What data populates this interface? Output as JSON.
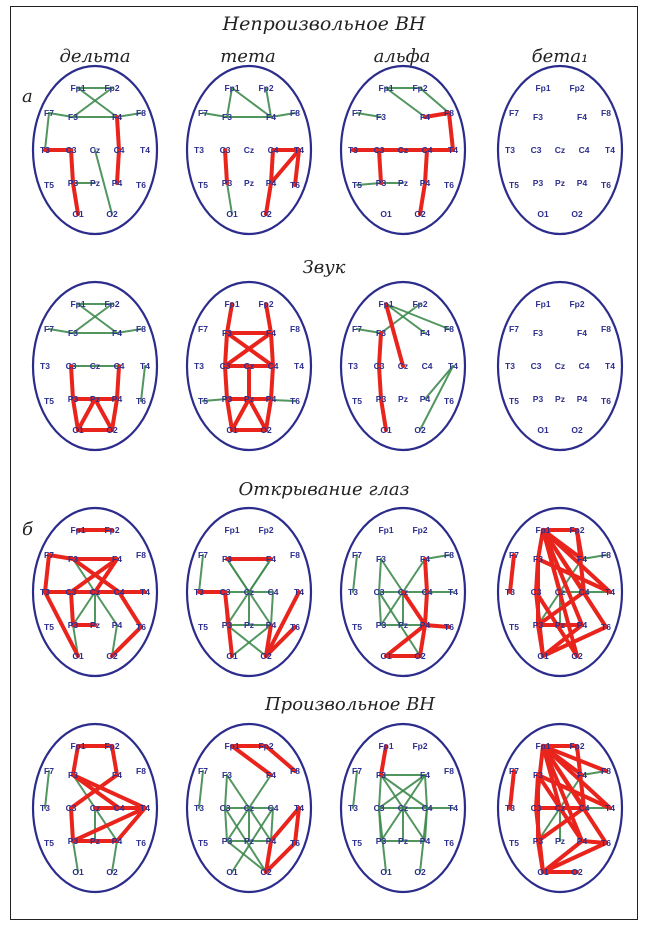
{
  "title": "Непроизвольное ВН",
  "columns": [
    "дельта",
    "тета",
    "альфа",
    "бета₁"
  ],
  "panel_labels": [
    "а",
    "б"
  ],
  "conditions": [
    "Непроизвольное ВН",
    "Звук",
    "Открывание глаз",
    "Произвольное ВН"
  ],
  "electrodes": [
    {
      "id": "Fp1",
      "label": "Fp1"
    },
    {
      "id": "Fp2",
      "label": "Fp2"
    },
    {
      "id": "F7",
      "label": "F7"
    },
    {
      "id": "F3",
      "label": "F3"
    },
    {
      "id": "F4",
      "label": "F4"
    },
    {
      "id": "F8",
      "label": "F8"
    },
    {
      "id": "T3",
      "label": "T3"
    },
    {
      "id": "C3",
      "label": "C3"
    },
    {
      "id": "Cz",
      "label": "Cz"
    },
    {
      "id": "C4",
      "label": "C4"
    },
    {
      "id": "T4",
      "label": "T4"
    },
    {
      "id": "T5",
      "label": "T5"
    },
    {
      "id": "P3",
      "label": "P3"
    },
    {
      "id": "Pz",
      "label": "Pz"
    },
    {
      "id": "P4",
      "label": "P4"
    },
    {
      "id": "T6",
      "label": "T6"
    },
    {
      "id": "O1",
      "label": "O1"
    },
    {
      "id": "O2",
      "label": "O2"
    }
  ],
  "colors": {
    "positive": "#e8241c",
    "negative": "#3f8a4e",
    "head": "#2c2c8c"
  },
  "maps": [
    [
      {
        "red": [
          [
            "C3",
            "P3"
          ],
          [
            "C4",
            "P4"
          ],
          [
            "C3",
            "T3"
          ],
          [
            "P3",
            "O1"
          ],
          [
            "F4",
            "C4"
          ]
        ],
        "green": [
          [
            "Fp1",
            "Fp2"
          ],
          [
            "Fp1",
            "F4"
          ],
          [
            "Fp2",
            "F3"
          ],
          [
            "F3",
            "F4"
          ],
          [
            "F7",
            "F3"
          ],
          [
            "F4",
            "F8"
          ],
          [
            "F7",
            "T3"
          ],
          [
            "P3",
            "Pz"
          ],
          [
            "Cz",
            "O2"
          ]
        ]
      },
      {
        "red": [
          [
            "C4",
            "P4"
          ],
          [
            "C4",
            "T4"
          ],
          [
            "P4",
            "T4"
          ],
          [
            "P4",
            "O2"
          ],
          [
            "C3",
            "P3"
          ],
          [
            "T4",
            "T6"
          ]
        ],
        "green": [
          [
            "Fp1",
            "F3"
          ],
          [
            "Fp2",
            "F4"
          ],
          [
            "F3",
            "F4"
          ],
          [
            "F7",
            "F3"
          ],
          [
            "F4",
            "F8"
          ],
          [
            "Fp1",
            "F4"
          ],
          [
            "P3",
            "O1"
          ]
        ]
      },
      {
        "red": [
          [
            "T3",
            "C3"
          ],
          [
            "C3",
            "Cz"
          ],
          [
            "Cz",
            "C4"
          ],
          [
            "C4",
            "T4"
          ],
          [
            "F4",
            "F8"
          ],
          [
            "F8",
            "T4"
          ],
          [
            "C4",
            "P4"
          ],
          [
            "P4",
            "O2"
          ],
          [
            "C3",
            "P3"
          ]
        ],
        "green": [
          [
            "Fp1",
            "Fp2"
          ],
          [
            "Fp1",
            "F4"
          ],
          [
            "Fp2",
            "F8"
          ],
          [
            "F7",
            "F3"
          ],
          [
            "P3",
            "Pz"
          ],
          [
            "T5",
            "P3"
          ]
        ]
      },
      {
        "red": [],
        "green": []
      }
    ],
    [
      {
        "red": [
          [
            "P3",
            "Pz"
          ],
          [
            "Pz",
            "P4"
          ],
          [
            "P3",
            "O1"
          ],
          [
            "O1",
            "O2"
          ],
          [
            "Pz",
            "O1"
          ],
          [
            "Pz",
            "O2"
          ],
          [
            "P4",
            "O2"
          ],
          [
            "C3",
            "P3"
          ],
          [
            "C4",
            "P4"
          ],
          [
            "P3",
            "P4"
          ]
        ],
        "green": [
          [
            "Fp1",
            "Fp2"
          ],
          [
            "Fp1",
            "F4"
          ],
          [
            "Fp2",
            "F3"
          ],
          [
            "F3",
            "F4"
          ],
          [
            "F7",
            "F3"
          ],
          [
            "F4",
            "F8"
          ],
          [
            "C3",
            "Cz"
          ],
          [
            "Cz",
            "C4"
          ],
          [
            "T4",
            "T6"
          ]
        ]
      },
      {
        "red": [
          [
            "Fp1",
            "F3"
          ],
          [
            "Fp2",
            "F4"
          ],
          [
            "F3",
            "F4"
          ],
          [
            "F3",
            "C4"
          ],
          [
            "F4",
            "C3"
          ],
          [
            "C3",
            "C4"
          ],
          [
            "C3",
            "P3"
          ],
          [
            "C4",
            "P4"
          ],
          [
            "P3",
            "P4"
          ],
          [
            "P3",
            "O1"
          ],
          [
            "P4",
            "O2"
          ],
          [
            "O1",
            "O2"
          ],
          [
            "Pz",
            "O1"
          ],
          [
            "Pz",
            "O2"
          ],
          [
            "F3",
            "C3"
          ],
          [
            "F4",
            "C4"
          ],
          [
            "Cz",
            "Pz"
          ]
        ],
        "green": [
          [
            "T5",
            "P3"
          ],
          [
            "Pz",
            "T6"
          ]
        ]
      },
      {
        "red": [
          [
            "Fp1",
            "Cz"
          ],
          [
            "F3",
            "C3"
          ],
          [
            "C3",
            "P3"
          ],
          [
            "P3",
            "O1"
          ]
        ],
        "green": [
          [
            "Fp1",
            "F8"
          ],
          [
            "Fp2",
            "F3"
          ],
          [
            "F7",
            "F3"
          ],
          [
            "T4",
            "P4"
          ],
          [
            "T4",
            "O2"
          ],
          [
            "Fp1",
            "F4"
          ]
        ]
      },
      {
        "red": [],
        "green": []
      }
    ],
    [
      {
        "red": [
          [
            "Fp1",
            "Fp2"
          ],
          [
            "F7",
            "F3"
          ],
          [
            "F3",
            "F4"
          ],
          [
            "F3",
            "C4"
          ],
          [
            "F4",
            "C3"
          ],
          [
            "T3",
            "C3"
          ],
          [
            "C3",
            "P3"
          ],
          [
            "C3",
            "Cz"
          ],
          [
            "Cz",
            "T4"
          ],
          [
            "C4",
            "T6"
          ],
          [
            "T3",
            "O1"
          ],
          [
            "P3",
            "Pz"
          ],
          [
            "F7",
            "T3"
          ],
          [
            "F4",
            "Cz"
          ],
          [
            "T6",
            "O2"
          ]
        ],
        "green": [
          [
            "F3",
            "P4"
          ],
          [
            "F4",
            "P3"
          ],
          [
            "Cz",
            "Pz"
          ],
          [
            "P3",
            "O1"
          ],
          [
            "P4",
            "O2"
          ]
        ]
      },
      {
        "red": [
          [
            "F3",
            "F4"
          ],
          [
            "T3",
            "C3"
          ],
          [
            "C3",
            "O1"
          ],
          [
            "P4",
            "O2"
          ],
          [
            "T4",
            "O2"
          ],
          [
            "T6",
            "O2"
          ]
        ],
        "green": [
          [
            "F7",
            "T3"
          ],
          [
            "F3",
            "P4"
          ],
          [
            "F4",
            "P3"
          ],
          [
            "C3",
            "Cz"
          ],
          [
            "Cz",
            "C4"
          ],
          [
            "C3",
            "P3"
          ],
          [
            "C4",
            "P4"
          ],
          [
            "P3",
            "Pz"
          ],
          [
            "Pz",
            "P4"
          ],
          [
            "Cz",
            "Pz"
          ],
          [
            "F3",
            "Cz"
          ],
          [
            "F4",
            "Cz"
          ],
          [
            "P3",
            "O2"
          ],
          [
            "P4",
            "O1"
          ]
        ]
      },
      {
        "red": [
          [
            "F4",
            "C4"
          ],
          [
            "C4",
            "P4"
          ],
          [
            "P4",
            "O2"
          ],
          [
            "O1",
            "P4"
          ],
          [
            "O1",
            "O2"
          ],
          [
            "P4",
            "T6"
          ],
          [
            "Cz",
            "P4"
          ]
        ],
        "green": [
          [
            "F7",
            "T3"
          ],
          [
            "F3",
            "C3"
          ],
          [
            "F3",
            "P4"
          ],
          [
            "F4",
            "P3"
          ],
          [
            "C3",
            "Cz"
          ],
          [
            "Cz",
            "C4"
          ],
          [
            "C4",
            "T4"
          ],
          [
            "C3",
            "P3"
          ],
          [
            "P3",
            "Pz"
          ],
          [
            "Pz",
            "P4"
          ],
          [
            "F4",
            "F8"
          ],
          [
            "Cz",
            "Pz"
          ],
          [
            "C3",
            "O2"
          ]
        ]
      },
      {
        "red": [
          [
            "Fp1",
            "Fp2"
          ],
          [
            "Fp1",
            "F3"
          ],
          [
            "Fp1",
            "F4"
          ],
          [
            "Fp1",
            "C4"
          ],
          [
            "Fp1",
            "T4"
          ],
          [
            "Fp1",
            "P4"
          ],
          [
            "Fp1",
            "T6"
          ],
          [
            "F3",
            "C3"
          ],
          [
            "F3",
            "P3"
          ],
          [
            "F7",
            "T3"
          ],
          [
            "C3",
            "O1"
          ],
          [
            "C3",
            "O2"
          ],
          [
            "P3",
            "O1"
          ],
          [
            "P4",
            "O1"
          ],
          [
            "C4",
            "P3"
          ],
          [
            "Fp2",
            "C4"
          ],
          [
            "Fp1",
            "Cz"
          ],
          [
            "P3",
            "Pz"
          ],
          [
            "Pz",
            "P4"
          ],
          [
            "O1",
            "T6"
          ],
          [
            "Fp2",
            "F4"
          ],
          [
            "F3",
            "T4"
          ],
          [
            "Fp1",
            "O2"
          ]
        ],
        "green": [
          [
            "F4",
            "F8"
          ],
          [
            "Cz",
            "C4"
          ],
          [
            "C4",
            "T4"
          ],
          [
            "F4",
            "P3"
          ],
          [
            "Cz",
            "Pz"
          ]
        ]
      }
    ],
    [
      {
        "red": [
          [
            "Fp1",
            "Fp2"
          ],
          [
            "Fp1",
            "F3"
          ],
          [
            "F3",
            "C4"
          ],
          [
            "F3",
            "T4"
          ],
          [
            "F4",
            "C3"
          ],
          [
            "C4",
            "T4"
          ],
          [
            "T4",
            "Cz"
          ],
          [
            "T4",
            "P4"
          ],
          [
            "T4",
            "P3"
          ],
          [
            "P3",
            "Pz"
          ],
          [
            "C3",
            "P3"
          ],
          [
            "Cz",
            "C4"
          ],
          [
            "Pz",
            "P4"
          ],
          [
            "Fp2",
            "F4"
          ]
        ],
        "green": [
          [
            "F7",
            "T3"
          ],
          [
            "F3",
            "P4"
          ],
          [
            "Cz",
            "Pz"
          ],
          [
            "P3",
            "O1"
          ],
          [
            "P4",
            "O2"
          ]
        ]
      },
      {
        "red": [
          [
            "Fp1",
            "Fp2"
          ],
          [
            "Fp1",
            "F4"
          ],
          [
            "Fp2",
            "F8"
          ],
          [
            "P4",
            "O2"
          ],
          [
            "T6",
            "O2"
          ],
          [
            "T4",
            "P4"
          ],
          [
            "T4",
            "T6"
          ]
        ],
        "green": [
          [
            "F7",
            "T3"
          ],
          [
            "F3",
            "C3"
          ],
          [
            "F3",
            "P4"
          ],
          [
            "F4",
            "P3"
          ],
          [
            "C3",
            "Cz"
          ],
          [
            "Cz",
            "C4"
          ],
          [
            "C3",
            "P3"
          ],
          [
            "C4",
            "P4"
          ],
          [
            "P3",
            "Pz"
          ],
          [
            "Pz",
            "P4"
          ],
          [
            "Cz",
            "Pz"
          ],
          [
            "C3",
            "O2"
          ],
          [
            "C4",
            "O1"
          ],
          [
            "P3",
            "O2"
          ]
        ]
      },
      {
        "red": [
          [
            "Fp1",
            "F3"
          ]
        ],
        "green": [
          [
            "F7",
            "T3"
          ],
          [
            "F3",
            "F4"
          ],
          [
            "F3",
            "C3"
          ],
          [
            "F4",
            "C4"
          ],
          [
            "F3",
            "P4"
          ],
          [
            "F4",
            "P3"
          ],
          [
            "C3",
            "Cz"
          ],
          [
            "Cz",
            "C4"
          ],
          [
            "C4",
            "T4"
          ],
          [
            "C3",
            "P3"
          ],
          [
            "C4",
            "P4"
          ],
          [
            "P3",
            "Pz"
          ],
          [
            "Pz",
            "P4"
          ],
          [
            "Cz",
            "Pz"
          ],
          [
            "C3",
            "O1"
          ],
          [
            "C4",
            "O2"
          ],
          [
            "F3",
            "C4"
          ],
          [
            "F4",
            "C3"
          ]
        ]
      },
      {
        "red": [
          [
            "Fp1",
            "Fp2"
          ],
          [
            "Fp1",
            "F4"
          ],
          [
            "Fp1",
            "F8"
          ],
          [
            "Fp1",
            "C4"
          ],
          [
            "Fp1",
            "T4"
          ],
          [
            "Fp1",
            "P4"
          ],
          [
            "Fp1",
            "T6"
          ],
          [
            "F3",
            "C3"
          ],
          [
            "F3",
            "P3"
          ],
          [
            "F3",
            "P4"
          ],
          [
            "T3",
            "F7"
          ],
          [
            "C3",
            "O1"
          ],
          [
            "P3",
            "O1"
          ],
          [
            "P4",
            "O1"
          ],
          [
            "O1",
            "T6"
          ],
          [
            "O1",
            "O2"
          ],
          [
            "Fp1",
            "C3"
          ],
          [
            "Fp1",
            "Cz"
          ],
          [
            "C3",
            "C4"
          ],
          [
            "F3",
            "T4"
          ],
          [
            "Fp2",
            "C4"
          ],
          [
            "P4",
            "T6"
          ],
          [
            "C4",
            "P3"
          ]
        ],
        "green": [
          [
            "F4",
            "F8"
          ],
          [
            "Cz",
            "C4"
          ],
          [
            "F4",
            "P3"
          ],
          [
            "Cz",
            "Pz"
          ],
          [
            "C4",
            "T4"
          ]
        ]
      }
    ]
  ]
}
